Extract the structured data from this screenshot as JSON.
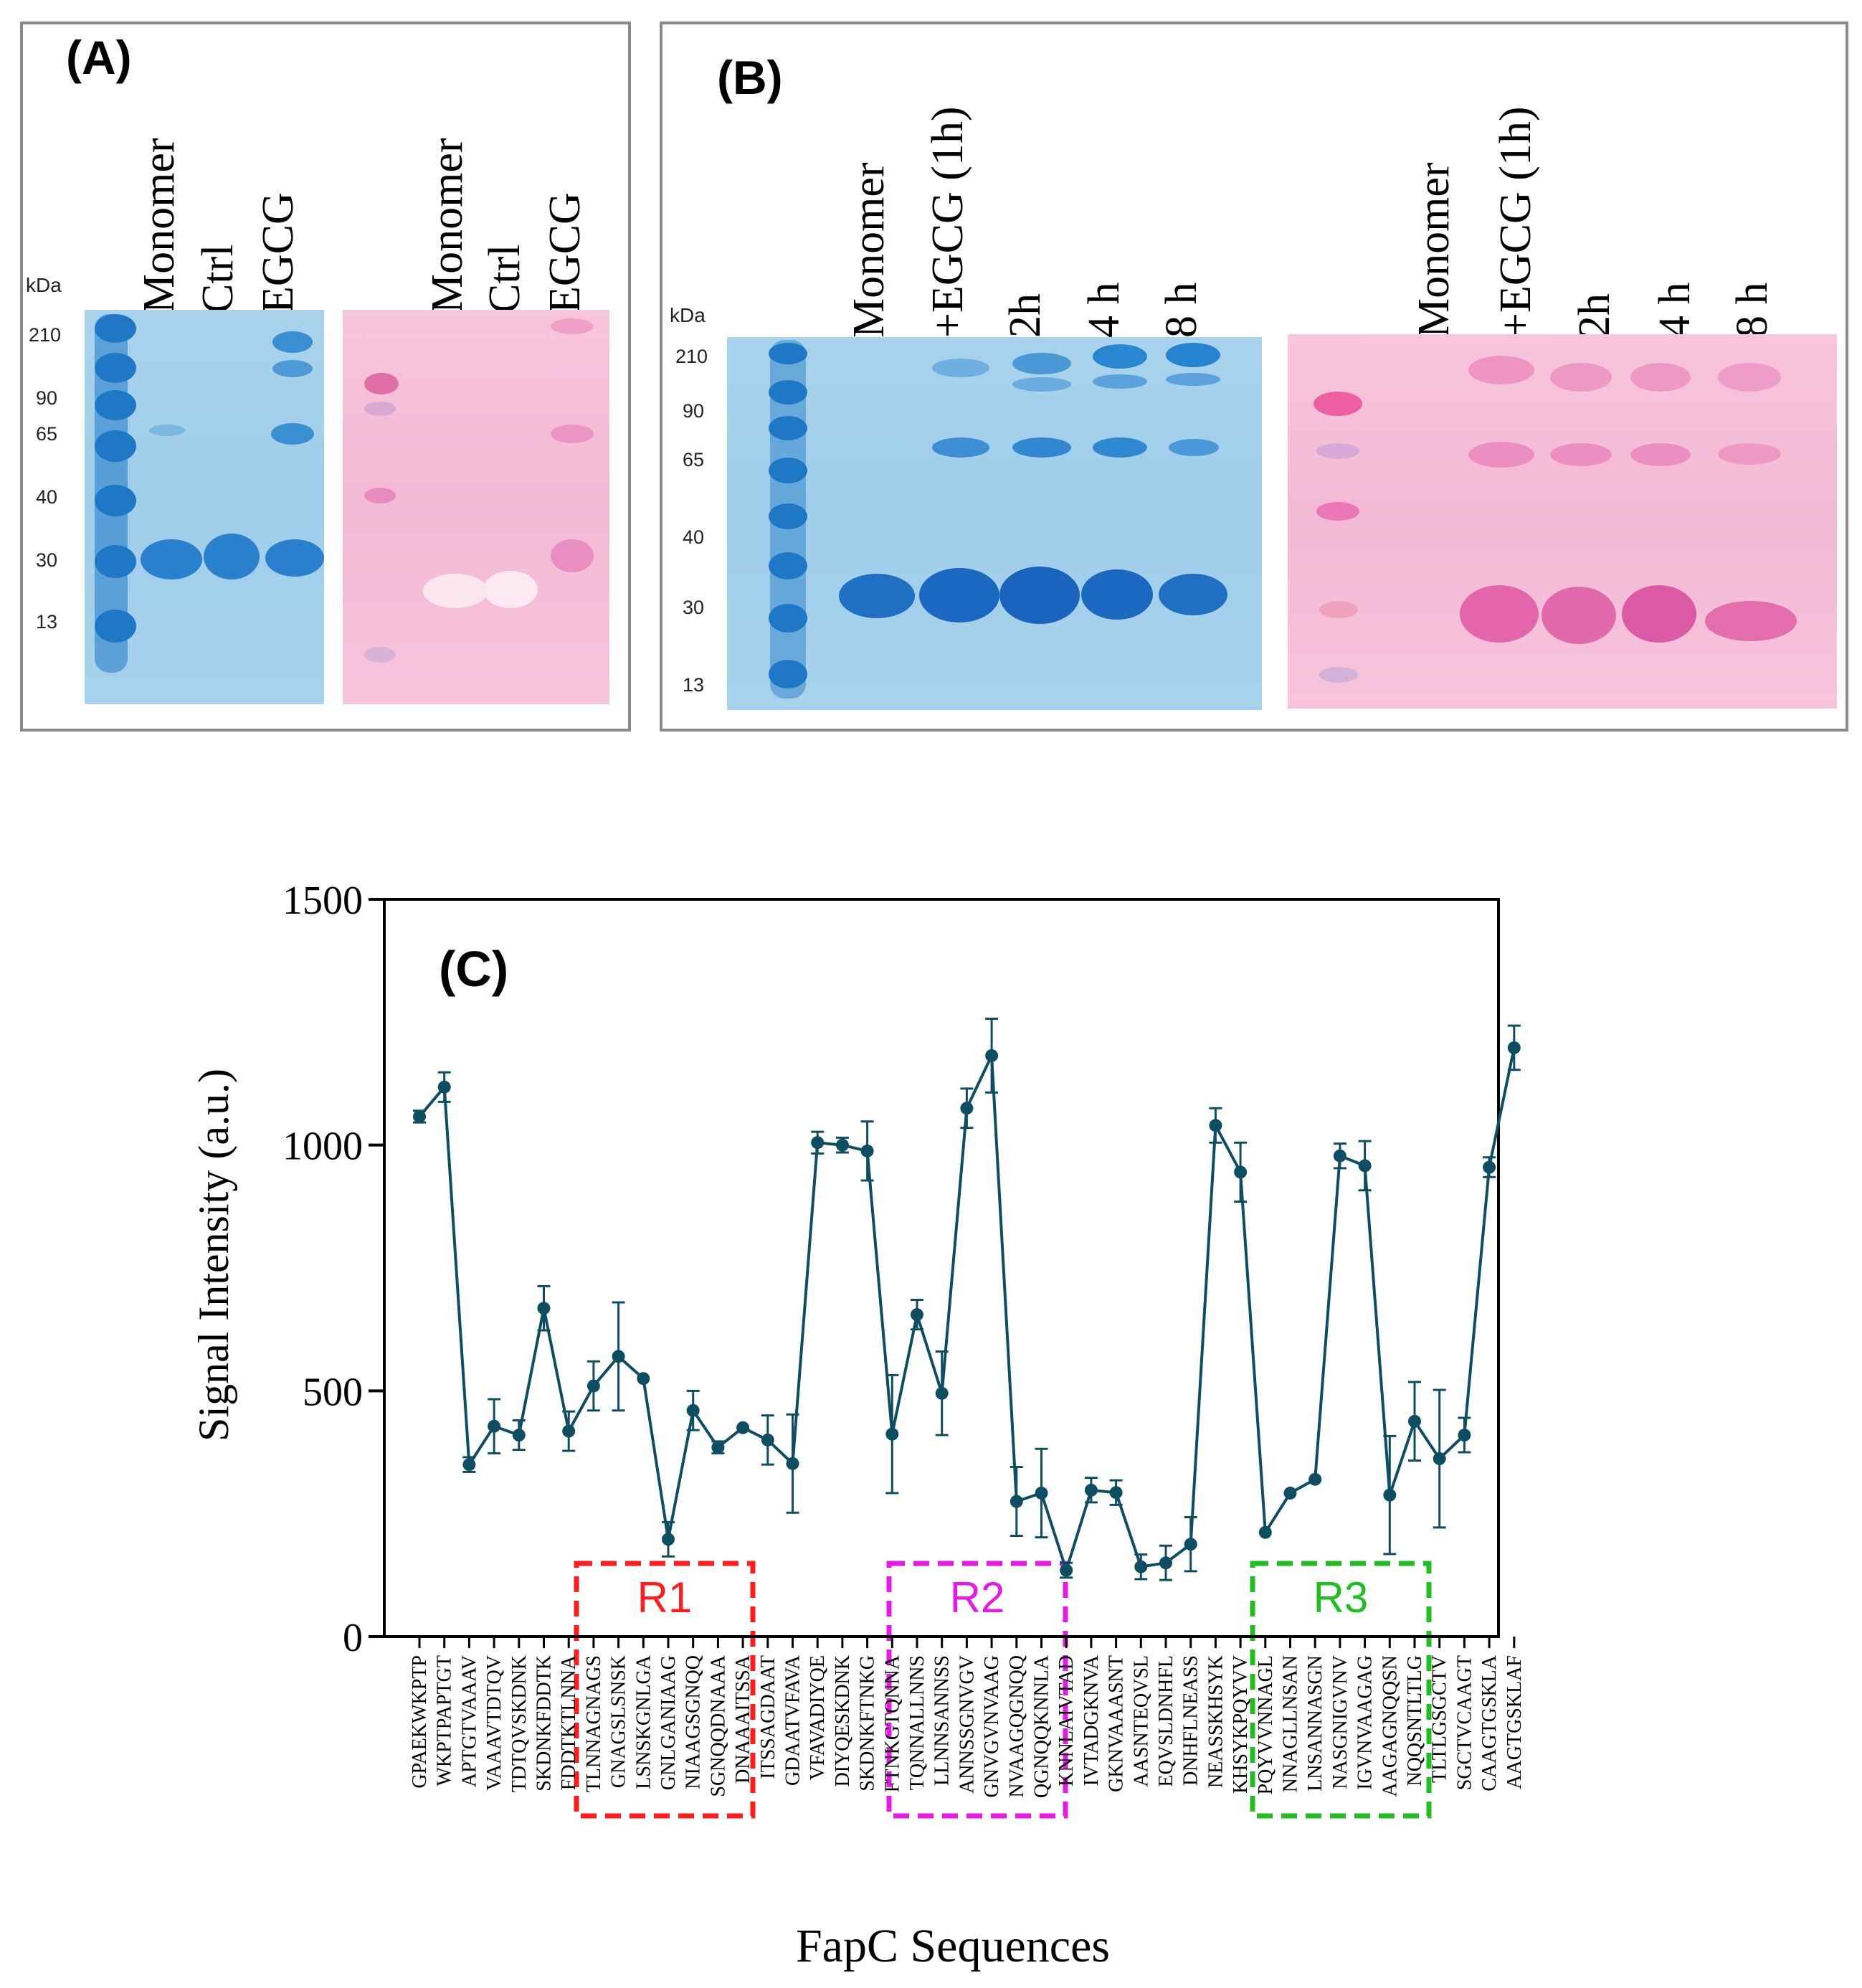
{
  "panel_a": {
    "label": "(A)",
    "kda_label": "kDa",
    "markers": [
      "210",
      "90",
      "65",
      "40",
      "30",
      "13"
    ],
    "coomassie_lanes": [
      "Monomer",
      "Ctrl",
      "EGCG"
    ],
    "pink_lanes": [
      "Monomer",
      "Ctrl",
      "EGCG"
    ],
    "colors": {
      "blue_gel": "#a3cfeb",
      "blue_band": "#1d79c8",
      "pink_gel": "#f5bdd7",
      "pink_band": "#e07bb0"
    }
  },
  "panel_b": {
    "label": "(B)",
    "kda_label": "kDa",
    "markers": [
      "210",
      "90",
      "65",
      "40",
      "30",
      "13"
    ],
    "coomassie_lanes": [
      "Monomer",
      "+EGCG (1h)",
      "2h",
      "4 h",
      "8 h"
    ],
    "pink_lanes": [
      "Monomer",
      "+EGCG (1h)",
      "2h",
      "4 h",
      "8 h"
    ]
  },
  "chart_data": {
    "type": "line",
    "panel_label": "(C)",
    "title": "",
    "xlabel": "FapC Sequences",
    "ylabel": "Signal Intensity (a.u.)",
    "ylim": [
      0,
      1500
    ],
    "yticks": [
      0,
      500,
      1000,
      1500
    ],
    "color": "#0e4e63",
    "categories": [
      "GPAEKWKPTP",
      "WKPTPAPTGT",
      "APTGTVAAAV",
      "VAAAVTDTQV",
      "TDTQVSKDNK",
      "SKDNKFDDTK",
      "FDDTKTLNNA",
      "TLNNAGNAGS",
      "GNAGSLSNSK",
      "LSNSKGNLGA",
      "GNLGANIAAG",
      "NIAAGSGNQQ",
      "SGNQQDNAAA",
      "DNAAAITSSA",
      "ITSSAGDAAT",
      "GDAATVFAVA",
      "VFAVADIYQE",
      "DIYQESKDNK",
      "SKDNKFTNKG",
      "FTNKGTQNNA",
      "TQNNALLNNS",
      "LLNNSANNSS",
      "ANNSSGNVGV",
      "GNVGVNVAAG",
      "NVAAGQGNQQ",
      "QGNQQKNNLA",
      "KNNLAIVTAD",
      "IVTADGKNVA",
      "GKNVAAASNT",
      "AASNTEQVSL",
      "EQVSLDNHFL",
      "DNHFLNEASS",
      "NEASSKHSYK",
      "KHSYKPQYVV",
      "PQYVVNNAGL",
      "NNAGLLNSAN",
      "LNSANNASGN",
      "NASGNIGVNV",
      "IGVNVAAGAG",
      "AAGAGNQQSN",
      "NQQSNTLTLG",
      "TLTLGSGCTV",
      "SGCTVCAAGT",
      "CAAGTGSKLA",
      "AAGTGSKLAF"
    ],
    "values": [
      1058,
      1118,
      350,
      428,
      410,
      668,
      418,
      510,
      570,
      525,
      198,
      460,
      385,
      425,
      400,
      352,
      1005,
      1000,
      988,
      412,
      655,
      495,
      1075,
      1182,
      275,
      292,
      135,
      298,
      293,
      142,
      150,
      188,
      1040,
      945,
      212,
      292,
      320,
      978,
      958,
      288,
      438,
      362,
      410,
      955,
      1198
    ],
    "errors": [
      12,
      30,
      15,
      55,
      30,
      45,
      40,
      50,
      110,
      0,
      35,
      40,
      12,
      0,
      50,
      100,
      22,
      15,
      60,
      120,
      30,
      85,
      40,
      75,
      70,
      90,
      15,
      25,
      25,
      25,
      35,
      55,
      35,
      60,
      0,
      0,
      0,
      25,
      50,
      120,
      80,
      140,
      35,
      20,
      45
    ],
    "regions": [
      {
        "label": "R1",
        "color": "#ff1c1c"
      },
      {
        "label": "R2",
        "color": "#e619e6"
      },
      {
        "label": "R3",
        "color": "#1fbf1f"
      }
    ]
  }
}
